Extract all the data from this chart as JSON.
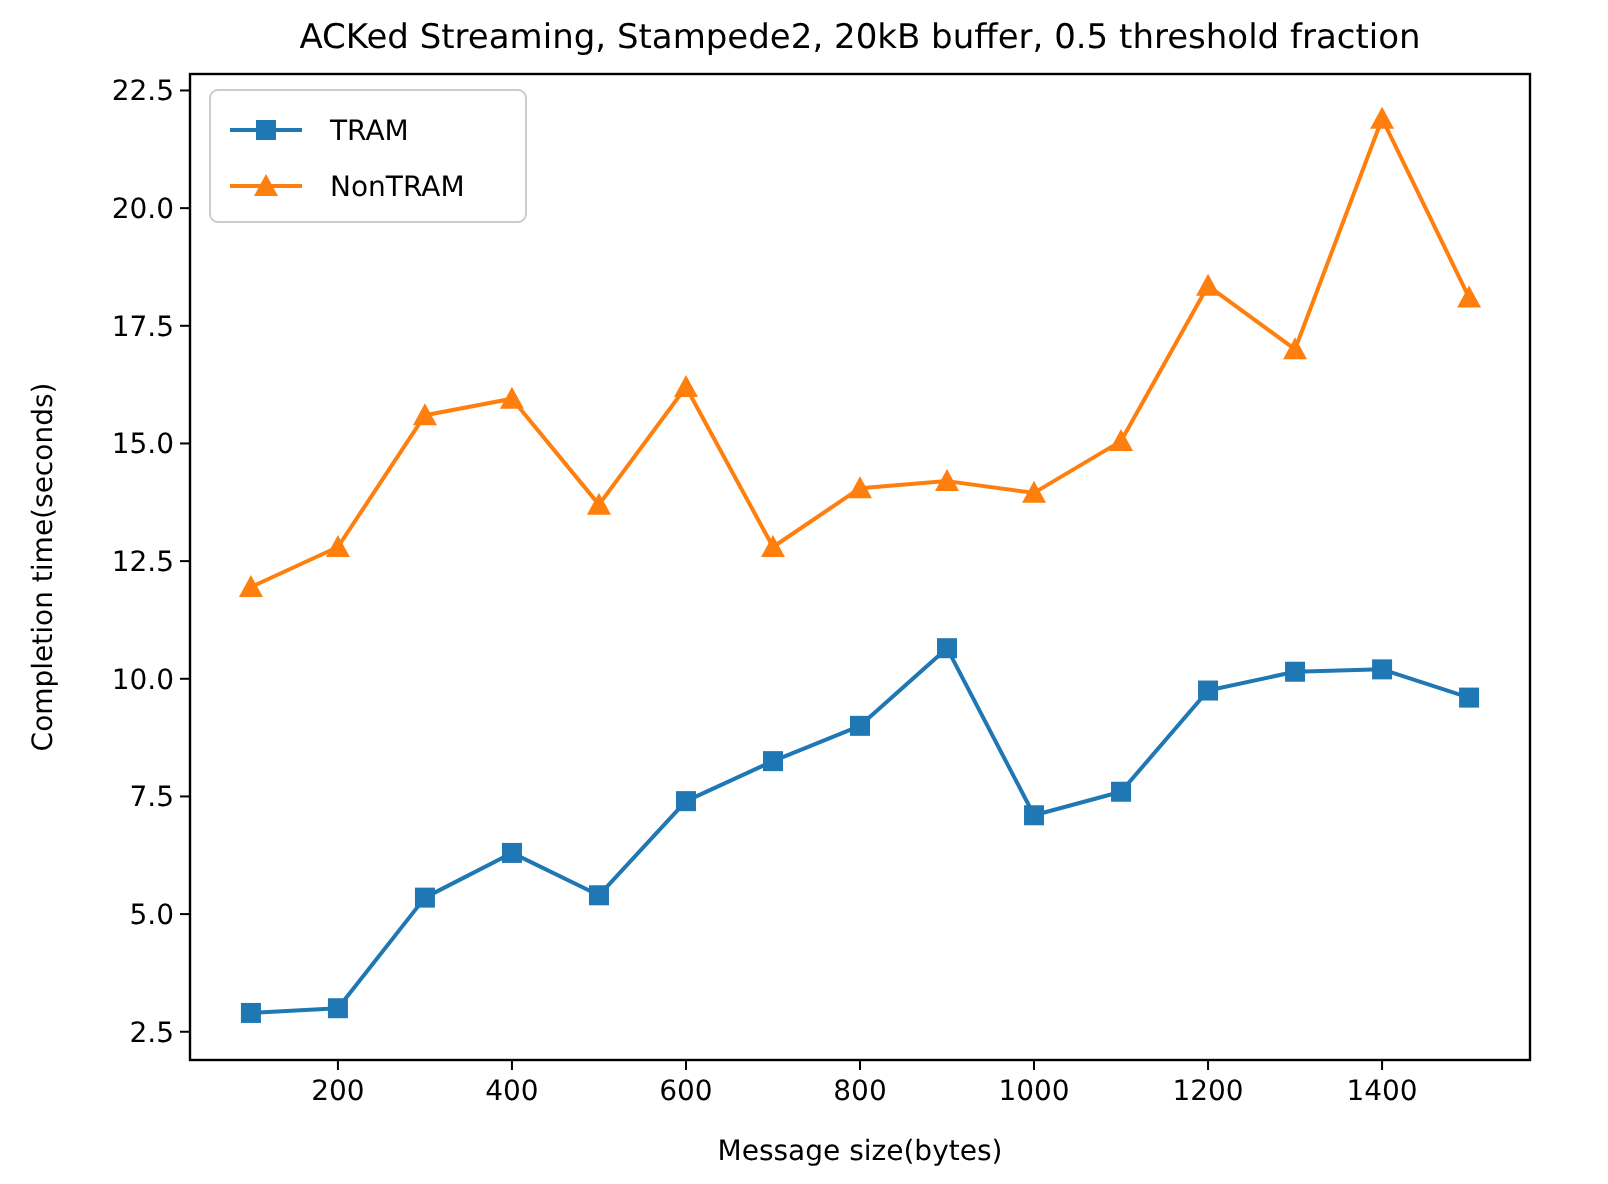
{
  "chart_data": {
    "type": "line",
    "title": "ACKed Streaming, Stampede2, 20kB buffer, 0.5 threshold fraction",
    "xlabel": "Message size(bytes)",
    "ylabel": "Completion time(seconds)",
    "x": [
      100,
      200,
      300,
      400,
      500,
      600,
      700,
      800,
      900,
      1000,
      1100,
      1200,
      1300,
      1400,
      1500
    ],
    "series": [
      {
        "name": "TRAM",
        "color": "#1f77b4",
        "marker": "square",
        "values": [
          2.9,
          3.0,
          5.35,
          6.3,
          5.4,
          7.4,
          8.25,
          9.0,
          10.65,
          7.1,
          7.6,
          9.75,
          10.15,
          10.2,
          9.6
        ]
      },
      {
        "name": "NonTRAM",
        "color": "#ff7f0e",
        "marker": "triangle",
        "values": [
          11.95,
          12.8,
          15.6,
          15.95,
          13.7,
          16.2,
          12.8,
          14.05,
          14.2,
          13.95,
          15.05,
          18.35,
          17.0,
          21.9,
          18.1
        ]
      }
    ],
    "xlim": [
      30,
      1570
    ],
    "xticks": [
      200,
      400,
      600,
      800,
      1000,
      1200,
      1400
    ],
    "ylim": [
      1.9,
      22.85
    ],
    "yticks": [
      {
        "value": 2.5,
        "label": "2.5"
      },
      {
        "value": 5,
        "label": "5.0"
      },
      {
        "value": 7.5,
        "label": "7.5"
      },
      {
        "value": 10,
        "label": "10.0"
      },
      {
        "value": 12.5,
        "label": "12.5"
      },
      {
        "value": 15,
        "label": "15.0"
      },
      {
        "value": 17.5,
        "label": "17.5"
      },
      {
        "value": 20,
        "label": "20.0"
      },
      {
        "value": 22.5,
        "label": "22.5"
      }
    ],
    "grid": false,
    "legend": "top left",
    "line_style": "solid"
  }
}
